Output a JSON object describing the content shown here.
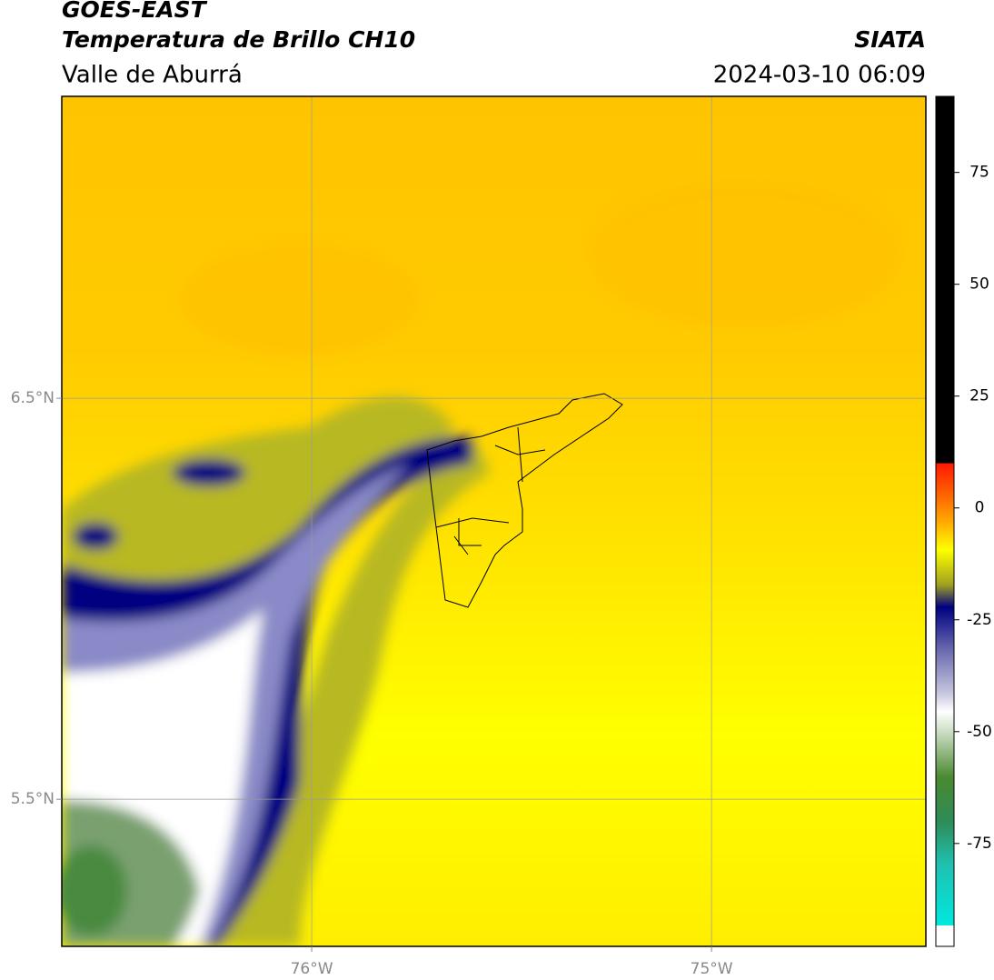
{
  "header": {
    "satellite": "GOES-EAST",
    "product": "Temperatura de Brillo CH10",
    "region": "Valle de Aburrá",
    "source": "SIATA",
    "datetime": "2024-03-10 06:09"
  },
  "map": {
    "xlim": [
      -76.625,
      -74.464
    ],
    "ylim": [
      5.133,
      7.253
    ],
    "xticks": [
      {
        "value": -76,
        "label": "76°W"
      },
      {
        "value": -75,
        "label": "75°W"
      }
    ],
    "yticks": [
      {
        "value": 6.5,
        "label": "6.5°N"
      },
      {
        "value": 5.5,
        "label": "5.5°N"
      }
    ],
    "grid": true
  },
  "colorbar": {
    "range": [
      -98,
      92
    ],
    "ticks": [
      75,
      50,
      25,
      0,
      -25,
      -50,
      -75
    ]
  }
}
